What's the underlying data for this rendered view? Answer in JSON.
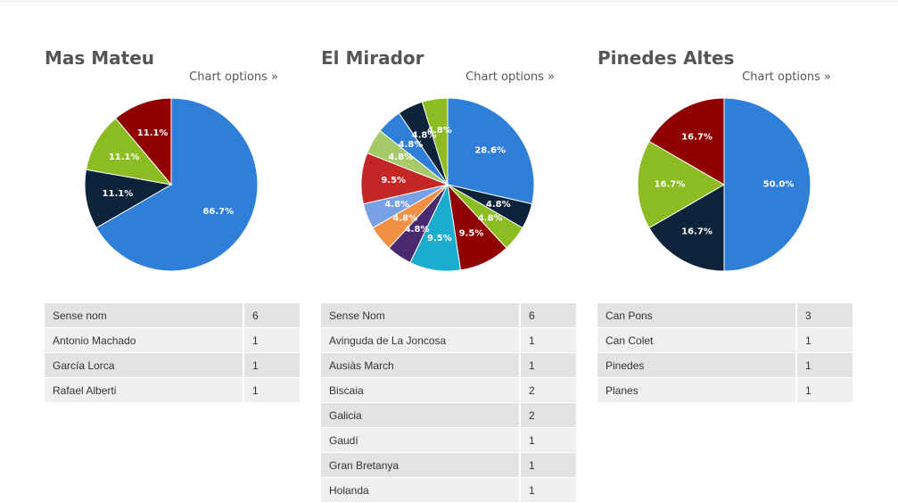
{
  "page": {
    "options_label": "Chart options »"
  },
  "chart_data": [
    {
      "type": "pie",
      "title": "Mas Mateu",
      "start": "top",
      "direction": "clockwise",
      "slices": [
        {
          "label": "Sense nom",
          "value": 6,
          "percent": "66.7%",
          "color": "#2f7ed8"
        },
        {
          "label": "Antonio Machado",
          "value": 1,
          "percent": "11.1%",
          "color": "#0d233a"
        },
        {
          "label": "García Lorca",
          "value": 1,
          "percent": "11.1%",
          "color": "#8bbc21"
        },
        {
          "label": "Rafael Alberti",
          "value": 1,
          "percent": "11.1%",
          "color": "#910000"
        }
      ]
    },
    {
      "type": "pie",
      "title": "El Mirador",
      "start": "top",
      "direction": "clockwise",
      "slices": [
        {
          "label": "Sense Nom",
          "value": 6,
          "percent": "28.6%",
          "color": "#2f7ed8"
        },
        {
          "label": "Avinguda de La Joncosa",
          "value": 1,
          "percent": "4.8%",
          "color": "#0d233a"
        },
        {
          "label": "Ausiàs March",
          "value": 1,
          "percent": "4.8%",
          "color": "#8bbc21"
        },
        {
          "label": "Biscaia",
          "value": 2,
          "percent": "9.5%",
          "color": "#910000"
        },
        {
          "label": "Galicia",
          "value": 2,
          "percent": "9.5%",
          "color": "#1aadce"
        },
        {
          "label": "Gaudí",
          "value": 1,
          "percent": "4.8%",
          "color": "#492970"
        },
        {
          "label": "Gran Bretanya",
          "value": 1,
          "percent": "4.8%",
          "color": "#f28f43"
        },
        {
          "label": "Holanda",
          "value": 1,
          "percent": "4.8%",
          "color": "#77a1e5"
        },
        {
          "value": 2,
          "percent": "9.5%",
          "color": "#c42525"
        },
        {
          "value": 1,
          "percent": "4.8%",
          "color": "#a6c96a"
        },
        {
          "value": 1,
          "percent": "4.8%",
          "color": "#2f7ed8"
        },
        {
          "value": 1,
          "percent": "4.8%",
          "color": "#0d233a"
        },
        {
          "value": 1,
          "percent": "4.8%",
          "color": "#8bbc21"
        }
      ]
    },
    {
      "type": "pie",
      "title": "Pinedes Altes",
      "start": "top",
      "direction": "clockwise",
      "slices": [
        {
          "label": "Can Pons",
          "value": 3,
          "percent": "50.0%",
          "color": "#2f7ed8"
        },
        {
          "label": "Can Colet",
          "value": 1,
          "percent": "16.7%",
          "color": "#0d233a"
        },
        {
          "label": "Pinedes",
          "value": 1,
          "percent": "16.7%",
          "color": "#8bbc21"
        },
        {
          "label": "Planes",
          "value": 1,
          "percent": "16.7%",
          "color": "#910000"
        }
      ]
    }
  ]
}
